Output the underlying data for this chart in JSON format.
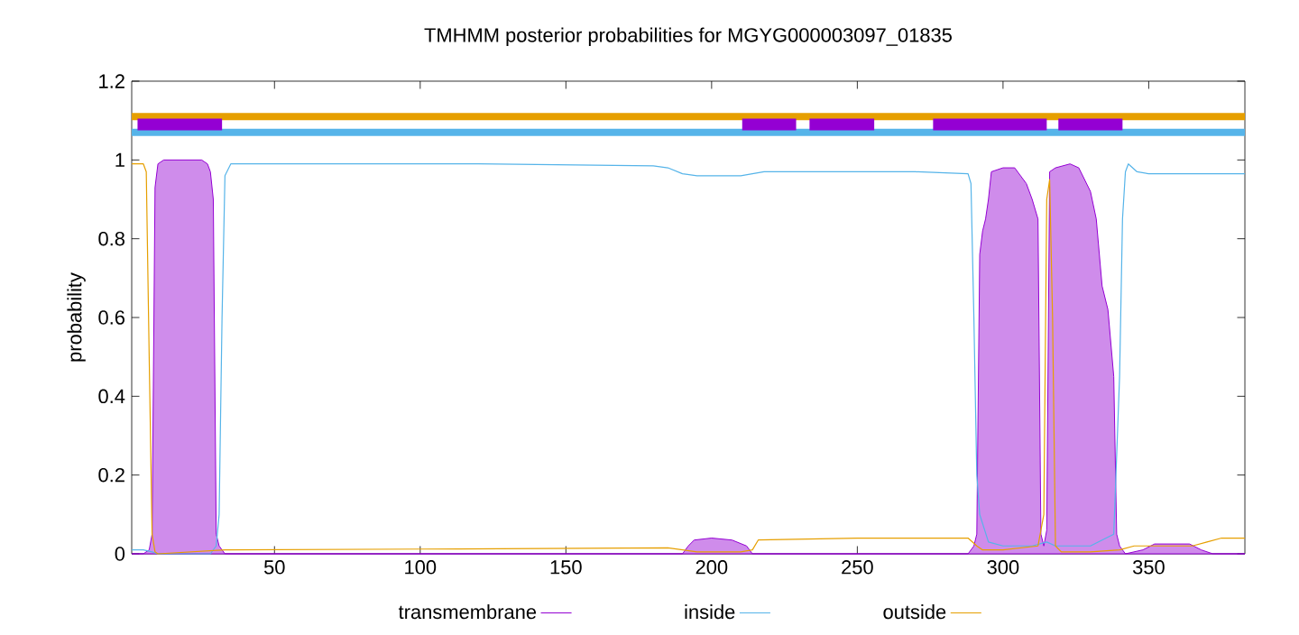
{
  "chart_data": {
    "type": "line",
    "title": "TMHMM posterior probabilities for MGYG000003097_01835",
    "ylabel": "probability",
    "xlim": [
      1,
      383
    ],
    "ylim": [
      0,
      1.2
    ],
    "xticks": [
      50,
      100,
      150,
      200,
      250,
      300,
      350
    ],
    "yticks": [
      0,
      0.2,
      0.4,
      0.6,
      0.8,
      1,
      1.2
    ],
    "legend": "bottom",
    "grid": false,
    "series": [
      {
        "name": "transmembrane",
        "type": "area",
        "color": "#9400d3",
        "x": [
          1,
          5,
          7,
          8,
          9,
          10,
          12,
          25,
          27,
          28,
          29,
          30,
          31,
          33,
          190,
          192,
          194,
          200,
          207,
          212,
          214,
          288,
          290,
          291,
          292,
          293,
          294,
          295,
          296,
          300,
          304,
          306,
          308,
          310,
          312,
          313,
          314,
          315,
          316,
          318,
          323,
          326,
          330,
          332,
          334,
          336,
          338,
          339,
          340,
          342,
          348,
          352,
          364,
          368,
          372,
          383
        ],
        "values": [
          0,
          0,
          0.01,
          0.05,
          0.93,
          0.99,
          1,
          1,
          0.99,
          0.97,
          0.9,
          0.05,
          0.02,
          0,
          0,
          0.02,
          0.035,
          0.04,
          0.035,
          0.02,
          0,
          0,
          0.02,
          0.05,
          0.76,
          0.82,
          0.85,
          0.9,
          0.97,
          0.98,
          0.98,
          0.96,
          0.94,
          0.9,
          0.85,
          0.05,
          0.02,
          0.06,
          0.97,
          0.98,
          0.99,
          0.98,
          0.92,
          0.85,
          0.68,
          0.62,
          0.45,
          0.05,
          0.02,
          0,
          0.01,
          0.025,
          0.025,
          0.01,
          0,
          0
        ]
      },
      {
        "name": "inside",
        "color": "#56b4e9",
        "x": [
          1,
          5,
          8,
          10,
          28,
          30,
          31,
          32,
          33,
          35,
          60,
          120,
          180,
          185,
          190,
          195,
          200,
          210,
          214,
          218,
          240,
          270,
          288,
          289,
          290,
          291,
          292,
          295,
          300,
          310,
          315,
          318,
          330,
          338,
          340,
          341,
          342,
          343,
          346,
          350,
          360,
          383
        ],
        "values": [
          0.01,
          0.01,
          0.005,
          0,
          0,
          0.02,
          0.1,
          0.6,
          0.96,
          0.99,
          0.99,
          0.99,
          0.985,
          0.98,
          0.965,
          0.96,
          0.96,
          0.96,
          0.965,
          0.97,
          0.97,
          0.97,
          0.965,
          0.94,
          0.6,
          0.2,
          0.1,
          0.03,
          0.02,
          0.02,
          0.03,
          0.02,
          0.02,
          0.05,
          0.45,
          0.85,
          0.97,
          0.99,
          0.97,
          0.965,
          0.965,
          0.965
        ]
      },
      {
        "name": "outside",
        "color": "#e69f00",
        "x": [
          1,
          5,
          6,
          7,
          8,
          9,
          10,
          33,
          100,
          185,
          195,
          210,
          214,
          216,
          250,
          288,
          291,
          293,
          300,
          312,
          314,
          315,
          316,
          317,
          318,
          320,
          330,
          340,
          345,
          365,
          370,
          375,
          383
        ],
        "values": [
          0.99,
          0.99,
          0.97,
          0.5,
          0.05,
          0.005,
          0,
          0.01,
          0.012,
          0.015,
          0.005,
          0.005,
          0.01,
          0.035,
          0.04,
          0.04,
          0.02,
          0.01,
          0.01,
          0.02,
          0.1,
          0.9,
          0.95,
          0.6,
          0.02,
          0.005,
          0.005,
          0.01,
          0.02,
          0.02,
          0.03,
          0.04,
          0.04
        ]
      },
      {
        "color": "#9400d3",
        "x": [
          3,
          32
        ],
        "values": [
          1.09,
          1.09
        ]
      },
      {
        "color": "#9400d3",
        "x": [
          210.5,
          229
        ],
        "values": [
          1.09,
          1.09
        ]
      },
      {
        "color": "#9400d3",
        "x": [
          233.6,
          255.8
        ],
        "values": [
          1.09,
          1.09
        ]
      },
      {
        "color": "#9400d3",
        "x": [
          276,
          293,
          315
        ],
        "values": [
          1.09,
          1.09,
          1.09
        ]
      },
      {
        "color": "#9400d3",
        "x": [
          319,
          341
        ],
        "values": [
          1.09,
          1.09
        ]
      }
    ],
    "ref_lines": [
      {
        "axis": "y",
        "value": 1.11,
        "color": "#e69f00"
      },
      {
        "axis": "y",
        "value": 1.07,
        "color": "#56b4e9"
      }
    ]
  }
}
